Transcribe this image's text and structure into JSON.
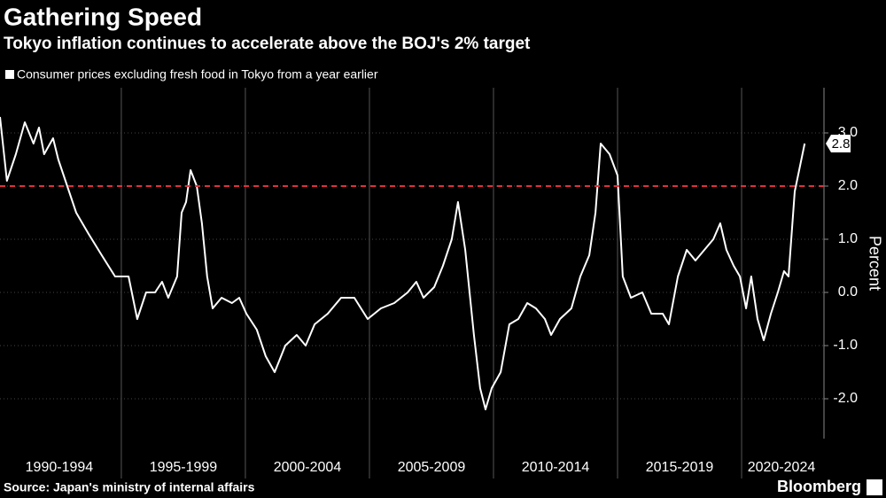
{
  "chart_data": {
    "type": "line",
    "title": "Gathering Speed",
    "subtitle": "Tokyo inflation continues to accelerate above the BOJ's 2% target",
    "y_label": "Percent",
    "source": "Source: Japan's ministry of internal affairs",
    "brand": "Bloomberg",
    "x": [
      1990.11,
      1990.39,
      1990.75,
      1991.11,
      1991.46,
      1991.68,
      1991.89,
      1992.25,
      1992.46,
      1992.82,
      1993.18,
      1993.68,
      1994.21,
      1994.75,
      1995.29,
      1995.64,
      1996.0,
      1996.36,
      1996.64,
      1996.89,
      1997.25,
      1997.43,
      1997.61,
      1997.79,
      1998.04,
      1998.25,
      1998.46,
      1998.68,
      1999.04,
      1999.46,
      1999.75,
      2000.04,
      2000.46,
      2000.82,
      2001.18,
      2001.61,
      2002.07,
      2002.43,
      2002.79,
      2003.32,
      2003.86,
      2004.39,
      2004.93,
      2005.46,
      2006.0,
      2006.54,
      2006.89,
      2007.18,
      2007.61,
      2007.96,
      2008.32,
      2008.57,
      2008.86,
      2009.21,
      2009.46,
      2009.68,
      2009.93,
      2010.29,
      2010.64,
      2011.0,
      2011.36,
      2011.71,
      2012.07,
      2012.32,
      2012.68,
      2013.14,
      2013.5,
      2013.86,
      2014.11,
      2014.32,
      2014.68,
      2015.0,
      2015.21,
      2015.54,
      2016.0,
      2016.36,
      2016.82,
      2017.07,
      2017.43,
      2017.79,
      2018.14,
      2018.5,
      2018.86,
      2019.14,
      2019.39,
      2019.68,
      2019.93,
      2020.18,
      2020.39,
      2020.64,
      2020.89,
      2021.18,
      2021.46,
      2021.71,
      2021.89,
      2022.14,
      2022.32,
      2022.54
    ],
    "series": [
      {
        "name": "Consumer prices excluding fresh food in Tokyo from a year earlier",
        "color": "#ffffff",
        "values": [
          3.3,
          2.1,
          2.6,
          3.2,
          2.8,
          3.1,
          2.6,
          2.9,
          2.5,
          2.0,
          1.5,
          1.1,
          0.7,
          0.3,
          0.3,
          -0.5,
          0.0,
          0.0,
          0.2,
          -0.1,
          0.3,
          1.5,
          1.7,
          2.3,
          2.0,
          1.3,
          0.3,
          -0.3,
          -0.1,
          -0.2,
          -0.1,
          -0.4,
          -0.7,
          -1.2,
          -1.5,
          -1.0,
          -0.8,
          -1.0,
          -0.6,
          -0.4,
          -0.1,
          -0.1,
          -0.5,
          -0.3,
          -0.2,
          0.0,
          0.2,
          -0.1,
          0.1,
          0.5,
          1.0,
          1.7,
          0.8,
          -0.8,
          -1.8,
          -2.2,
          -1.8,
          -1.5,
          -0.6,
          -0.5,
          -0.2,
          -0.3,
          -0.5,
          -0.8,
          -0.5,
          -0.3,
          0.3,
          0.7,
          1.5,
          2.8,
          2.6,
          2.2,
          0.3,
          -0.1,
          0.0,
          -0.4,
          -0.4,
          -0.6,
          0.3,
          0.8,
          0.6,
          0.8,
          1.0,
          1.3,
          0.8,
          0.5,
          0.3,
          -0.3,
          0.3,
          -0.5,
          -0.9,
          -0.4,
          0.0,
          0.4,
          0.3,
          1.9,
          2.3,
          2.8
        ]
      }
    ],
    "target_line": {
      "value": 2.0,
      "color": "#e0303a"
    },
    "xlim": [
      1990.11,
      2023.32
    ],
    "xticks": [
      {
        "value": 1992.5,
        "label": "1990-1994"
      },
      {
        "value": 1997.5,
        "label": "1995-1999"
      },
      {
        "value": 2002.5,
        "label": "2000-2004"
      },
      {
        "value": 2007.5,
        "label": "2005-2009"
      },
      {
        "value": 2012.5,
        "label": "2010-2014"
      },
      {
        "value": 2017.5,
        "label": "2015-2019"
      },
      {
        "value": 2022.5,
        "label": "2020-2024"
      }
    ],
    "xgrid": [
      1995,
      2000,
      2005,
      2010,
      2015,
      2020
    ],
    "ylim": [
      -2.75,
      3.85
    ],
    "yticks": [
      {
        "value": -2,
        "label": "-2.0"
      },
      {
        "value": -1,
        "label": "-1.0"
      },
      {
        "value": 0,
        "label": "0.0"
      },
      {
        "value": 1,
        "label": "1.0"
      },
      {
        "value": 2,
        "label": "2.0"
      },
      {
        "value": 3,
        "label": "3.0"
      }
    ]
  }
}
